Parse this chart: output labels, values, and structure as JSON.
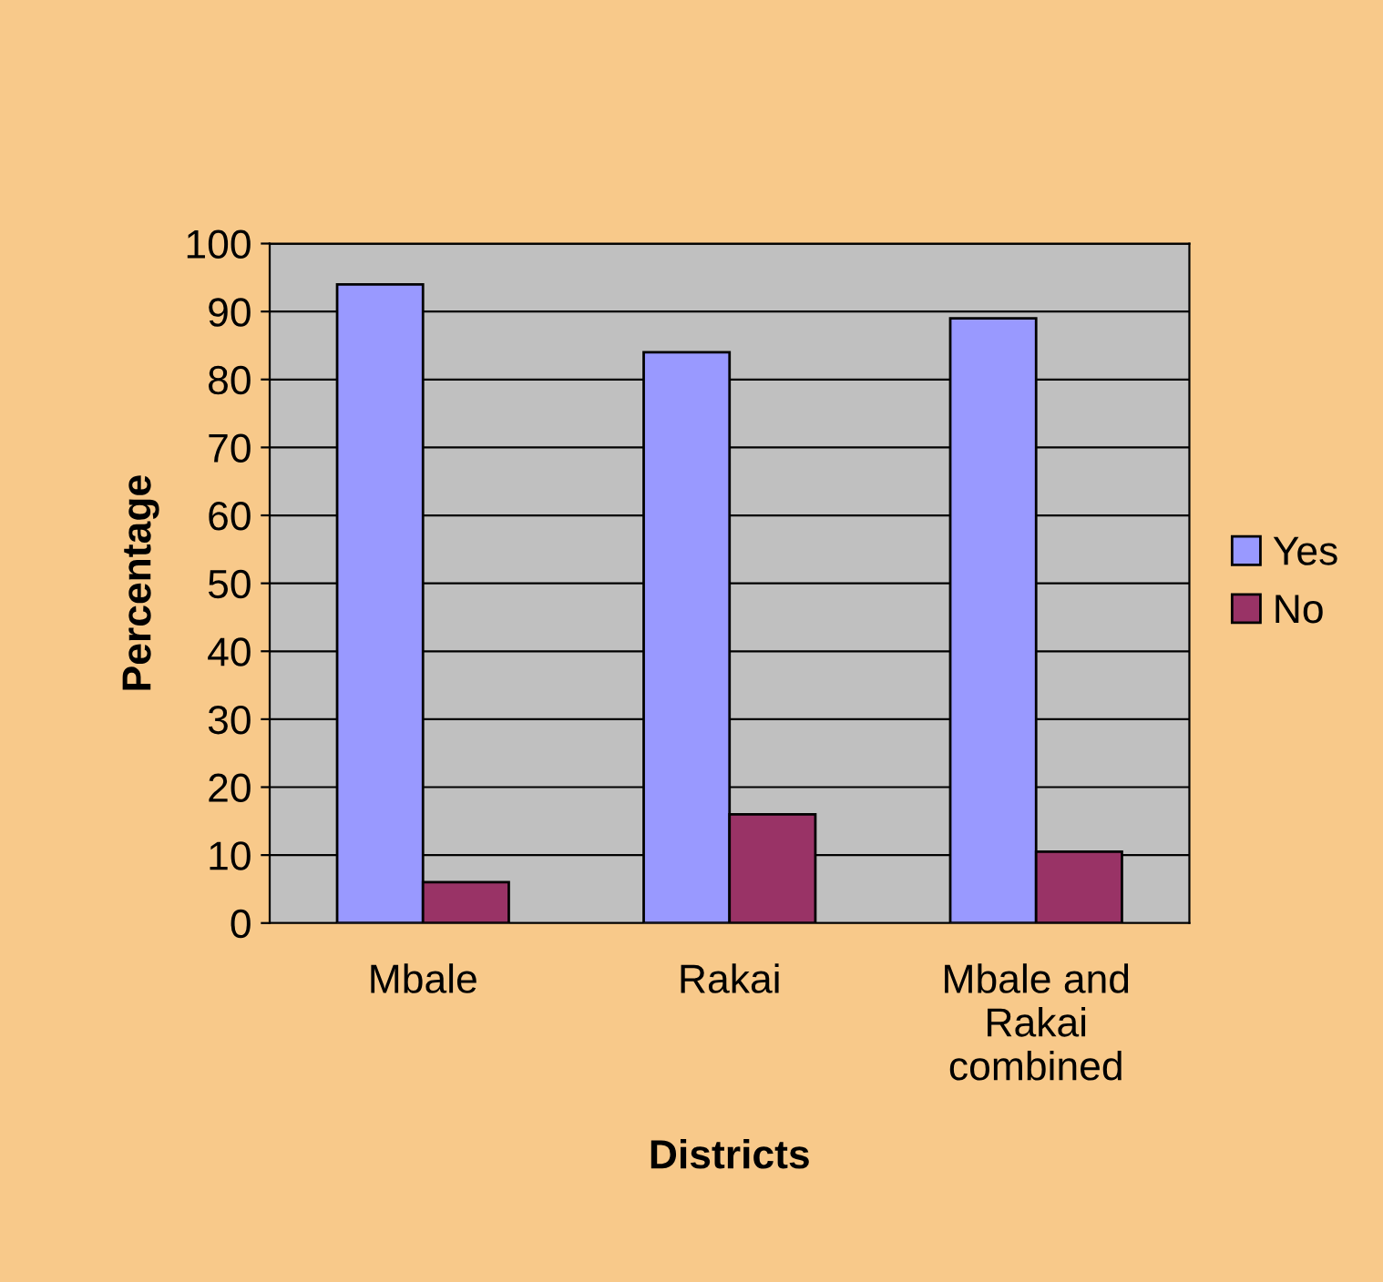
{
  "chart_data": {
    "type": "bar",
    "xlabel": "Districts",
    "ylabel": "Percentage",
    "categories": [
      "Mbale",
      "Rakai",
      "Mbale and\nRakai\ncombined"
    ],
    "series": [
      {
        "name": "Yes",
        "color": "#9999ff",
        "values": [
          94,
          84,
          89
        ]
      },
      {
        "name": "No",
        "color": "#993366",
        "values": [
          6,
          16,
          10.5
        ]
      }
    ],
    "ylim": [
      0,
      100
    ],
    "yticks": [
      0,
      10,
      20,
      30,
      40,
      50,
      60,
      70,
      80,
      90,
      100
    ],
    "grid": "y",
    "legend": "right"
  }
}
